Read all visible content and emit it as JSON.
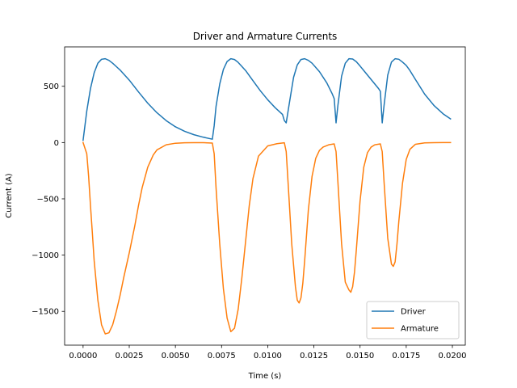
{
  "chart_data": {
    "type": "line",
    "title": "Driver and Armature Currents",
    "xlabel": "Time (s)",
    "ylabel": "Current (A)",
    "xlim": [
      -0.001,
      0.0207
    ],
    "ylim": [
      -1800,
      850
    ],
    "xticks": [
      0.0,
      0.0025,
      0.005,
      0.0075,
      0.01,
      0.0125,
      0.015,
      0.0175,
      0.02
    ],
    "xtick_labels": [
      "0.0000",
      "0.0025",
      "0.0050",
      "0.0075",
      "0.0100",
      "0.0125",
      "0.0150",
      "0.0175",
      "0.0200"
    ],
    "yticks": [
      -1500,
      -1000,
      -500,
      0,
      500
    ],
    "ytick_labels": [
      "−1500",
      "−1000",
      "−500",
      "0",
      "500"
    ],
    "grid": false,
    "legend_position": "lower-right",
    "series": [
      {
        "name": "Driver",
        "color": "#1f77b4",
        "x": [
          0.0,
          0.0002,
          0.0004,
          0.0006,
          0.0008,
          0.001,
          0.0012,
          0.0014,
          0.0016,
          0.0018,
          0.002,
          0.0025,
          0.003,
          0.0035,
          0.004,
          0.0045,
          0.005,
          0.0055,
          0.006,
          0.0065,
          0.007,
          0.0071,
          0.0072,
          0.0074,
          0.0076,
          0.0078,
          0.008,
          0.0082,
          0.0084,
          0.0088,
          0.0092,
          0.0096,
          0.01,
          0.0104,
          0.0108,
          0.0109,
          0.011,
          0.0112,
          0.0114,
          0.0116,
          0.0118,
          0.012,
          0.0122,
          0.0124,
          0.0128,
          0.0132,
          0.0135,
          0.0136,
          0.0137,
          0.0138,
          0.014,
          0.0142,
          0.0144,
          0.0146,
          0.0148,
          0.015,
          0.0152,
          0.0156,
          0.016,
          0.0161,
          0.0162,
          0.0163,
          0.0165,
          0.0167,
          0.0169,
          0.0171,
          0.0173,
          0.0175,
          0.0177,
          0.018,
          0.0185,
          0.019,
          0.0195,
          0.0199
        ],
        "values": [
          20,
          280,
          480,
          620,
          705,
          740,
          745,
          730,
          705,
          675,
          645,
          555,
          450,
          350,
          265,
          195,
          140,
          100,
          70,
          48,
          30,
          150,
          320,
          520,
          650,
          720,
          745,
          738,
          712,
          640,
          550,
          460,
          380,
          310,
          250,
          195,
          175,
          380,
          580,
          690,
          738,
          745,
          730,
          705,
          630,
          530,
          430,
          390,
          175,
          330,
          590,
          705,
          745,
          742,
          718,
          680,
          640,
          560,
          480,
          455,
          175,
          330,
          600,
          715,
          745,
          740,
          715,
          685,
          640,
          560,
          430,
          330,
          255,
          210
        ]
      },
      {
        "name": "Armature",
        "color": "#ff7f0e",
        "x": [
          0.0,
          0.0002,
          0.0003,
          0.0004,
          0.0005,
          0.0006,
          0.0008,
          0.001,
          0.0012,
          0.0014,
          0.0016,
          0.0018,
          0.002,
          0.0022,
          0.0025,
          0.0028,
          0.003,
          0.0032,
          0.0035,
          0.0038,
          0.004,
          0.0045,
          0.005,
          0.0055,
          0.006,
          0.0065,
          0.007,
          0.0071,
          0.0072,
          0.0074,
          0.0076,
          0.0078,
          0.008,
          0.0082,
          0.0084,
          0.0086,
          0.0088,
          0.009,
          0.0092,
          0.0095,
          0.01,
          0.0105,
          0.0109,
          0.011,
          0.0111,
          0.0113,
          0.0115,
          0.0116,
          0.0117,
          0.0118,
          0.0119,
          0.012,
          0.0122,
          0.0124,
          0.0126,
          0.0128,
          0.013,
          0.0133,
          0.0136,
          0.0137,
          0.0138,
          0.014,
          0.0142,
          0.0144,
          0.0145,
          0.0146,
          0.0147,
          0.0148,
          0.015,
          0.0152,
          0.0154,
          0.0156,
          0.0158,
          0.0161,
          0.0162,
          0.0163,
          0.0165,
          0.0167,
          0.0168,
          0.0169,
          0.017,
          0.0171,
          0.0173,
          0.0175,
          0.0177,
          0.018,
          0.0185,
          0.019,
          0.0195,
          0.0199
        ],
        "values": [
          0,
          -100,
          -300,
          -560,
          -800,
          -1050,
          -1400,
          -1620,
          -1700,
          -1690,
          -1620,
          -1500,
          -1360,
          -1200,
          -980,
          -740,
          -560,
          -400,
          -220,
          -110,
          -65,
          -20,
          -6,
          -2,
          -1,
          -1,
          -5,
          -100,
          -400,
          -900,
          -1300,
          -1560,
          -1680,
          -1650,
          -1480,
          -1200,
          -880,
          -560,
          -320,
          -120,
          -30,
          -10,
          -2,
          -80,
          -350,
          -900,
          -1280,
          -1400,
          -1425,
          -1380,
          -1250,
          -1050,
          -600,
          -300,
          -140,
          -70,
          -40,
          -20,
          -12,
          -80,
          -350,
          -900,
          -1240,
          -1310,
          -1330,
          -1280,
          -1150,
          -950,
          -520,
          -220,
          -90,
          -40,
          -20,
          -12,
          -80,
          -350,
          -850,
          -1080,
          -1100,
          -1060,
          -900,
          -700,
          -360,
          -150,
          -60,
          -15,
          -3,
          -1,
          0,
          0
        ]
      }
    ]
  }
}
